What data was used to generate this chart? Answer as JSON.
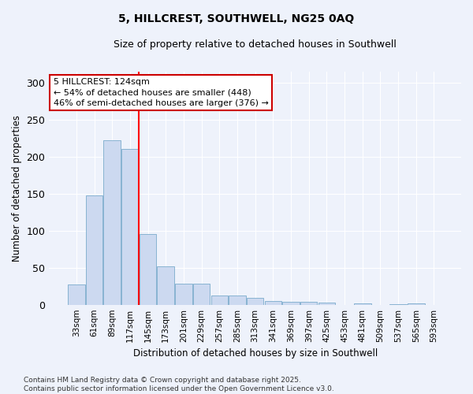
{
  "title": "5, HILLCREST, SOUTHWELL, NG25 0AQ",
  "subtitle": "Size of property relative to detached houses in Southwell",
  "xlabel": "Distribution of detached houses by size in Southwell",
  "ylabel": "Number of detached properties",
  "categories": [
    "33sqm",
    "61sqm",
    "89sqm",
    "117sqm",
    "145sqm",
    "173sqm",
    "201sqm",
    "229sqm",
    "257sqm",
    "285sqm",
    "313sqm",
    "341sqm",
    "369sqm",
    "397sqm",
    "425sqm",
    "453sqm",
    "481sqm",
    "509sqm",
    "537sqm",
    "565sqm",
    "593sqm"
  ],
  "values": [
    27,
    147,
    222,
    210,
    95,
    52,
    28,
    28,
    12,
    12,
    9,
    5,
    4,
    4,
    3,
    0,
    2,
    0,
    1,
    2
  ],
  "bar_color": "#ccd9f0",
  "bar_edge_color": "#7aabcc",
  "background_color": "#eef2fb",
  "grid_color": "#ffffff",
  "red_line_x": 3.5,
  "annotation_text": "5 HILLCREST: 124sqm\n← 54% of detached houses are smaller (448)\n46% of semi-detached houses are larger (376) →",
  "annotation_box_color": "#ffffff",
  "annotation_box_edge_color": "#cc0000",
  "footer": "Contains HM Land Registry data © Crown copyright and database right 2025.\nContains public sector information licensed under the Open Government Licence v3.0.",
  "ylim": [
    0,
    315
  ],
  "yticks": [
    0,
    50,
    100,
    150,
    200,
    250,
    300
  ]
}
